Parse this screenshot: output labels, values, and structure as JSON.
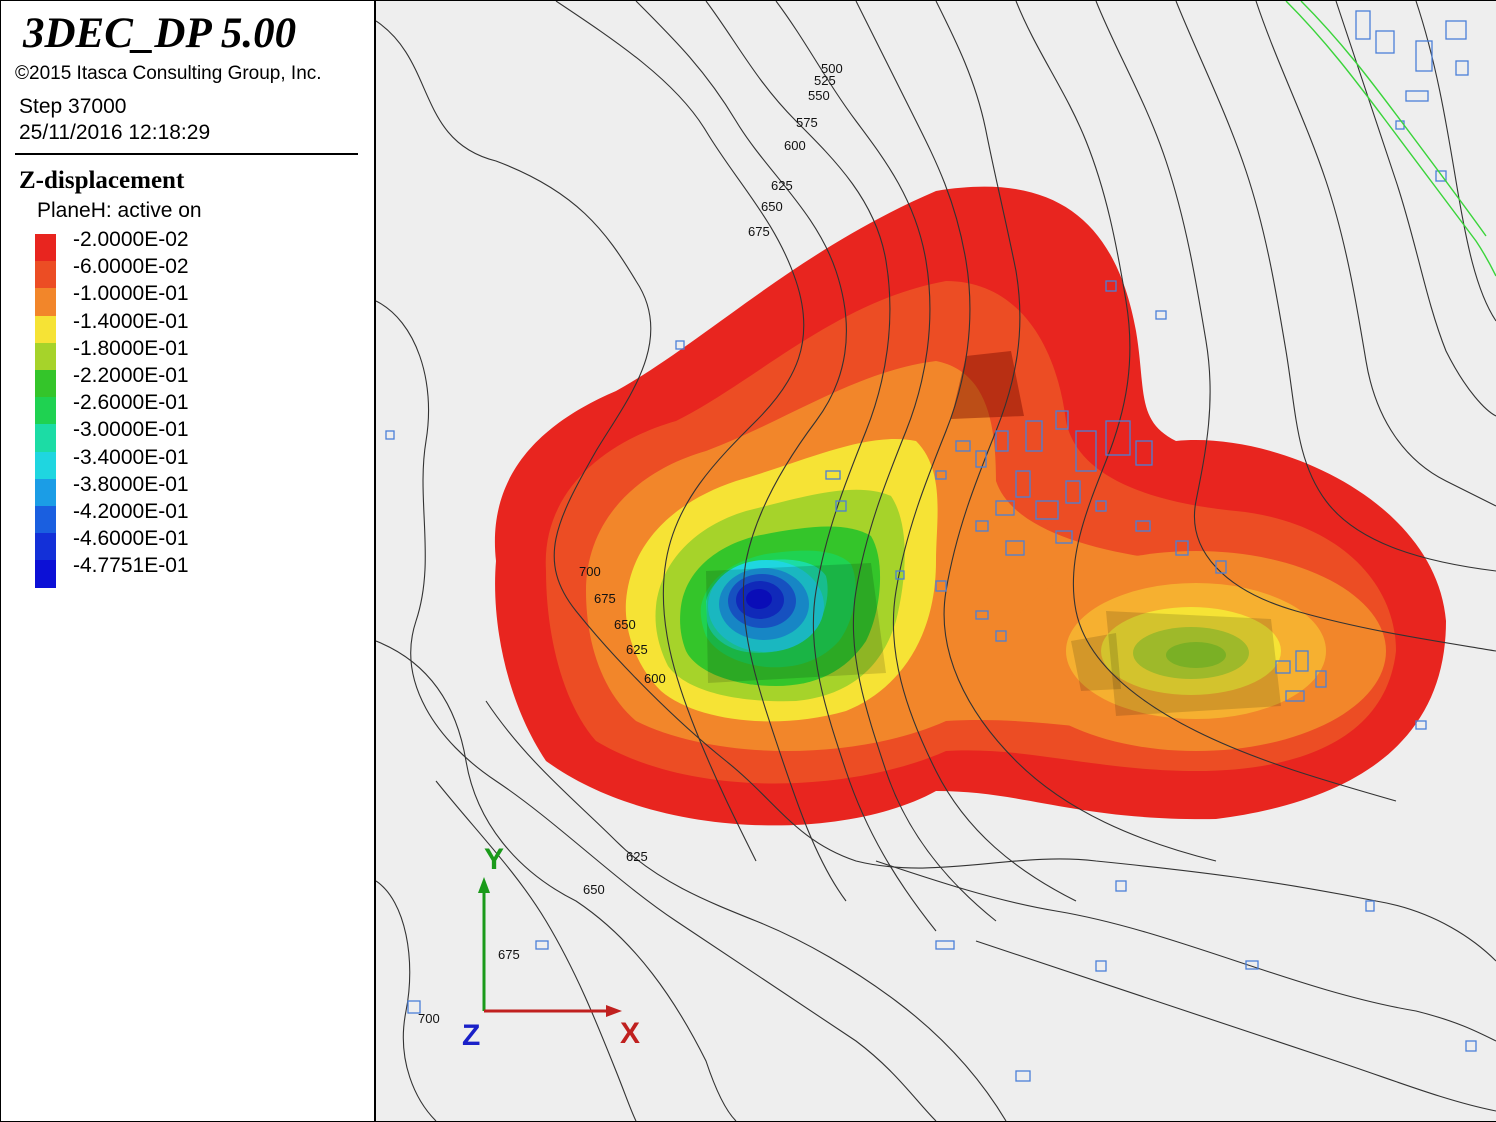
{
  "header": {
    "app_title": "3DEC_DP 5.00",
    "copyright": "©2015 Itasca Consulting Group, Inc.",
    "step": "Step 37000",
    "datetime": "25/11/2016 12:18:29"
  },
  "legend": {
    "title": "Z-displacement",
    "subtitle": "PlaneH: active on",
    "entries": [
      {
        "label": "-2.0000E-02",
        "color": "#e8251f"
      },
      {
        "label": "-6.0000E-02",
        "color": "#ec4d24"
      },
      {
        "label": "-1.0000E-01",
        "color": "#f2862a"
      },
      {
        "label": "-1.4000E-01",
        "color": "#f6e335"
      },
      {
        "label": "-1.8000E-01",
        "color": "#a6d32a"
      },
      {
        "label": "-2.2000E-01",
        "color": "#34c52a"
      },
      {
        "label": "-2.6000E-01",
        "color": "#1fd251"
      },
      {
        "label": "-3.0000E-01",
        "color": "#1cdca5"
      },
      {
        "label": "-3.4000E-01",
        "color": "#1fd6e0"
      },
      {
        "label": "-3.8000E-01",
        "color": "#1b9de6"
      },
      {
        "label": "-4.2000E-01",
        "color": "#1a5fe0"
      },
      {
        "label": "-4.6000E-01",
        "color": "#1330d8"
      },
      {
        "label": "-4.7751E-01",
        "color": "#0c10d6"
      }
    ]
  },
  "contours": {
    "labels": [
      "500",
      "525",
      "550",
      "575",
      "600",
      "625",
      "650",
      "675",
      "700",
      "675",
      "650",
      "625",
      "600",
      "625",
      "650",
      "675",
      "700"
    ]
  },
  "axes": {
    "y_label": "Y",
    "x_label": "X",
    "z_label": "Z",
    "y_color": "#1a9a1a",
    "x_color": "#c0201f",
    "z_color": "#1a20c8"
  }
}
